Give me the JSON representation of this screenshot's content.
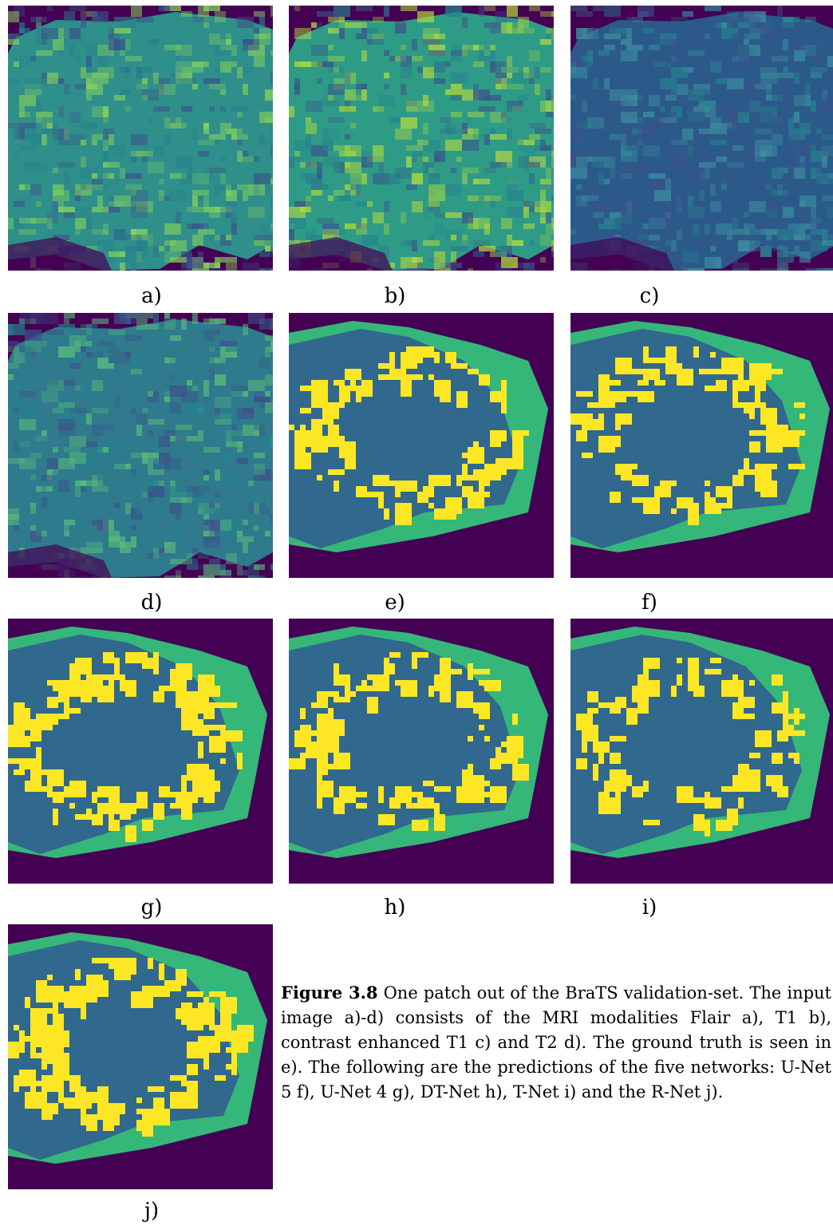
{
  "panels": [
    {
      "label": "a)",
      "kind": "mri",
      "modality": "Flair",
      "tint": "bright"
    },
    {
      "label": "b)",
      "kind": "mri",
      "modality": "T1",
      "tint": "light"
    },
    {
      "label": "c)",
      "kind": "mri",
      "modality": "contrast enhanced T1",
      "tint": "dark"
    },
    {
      "label": "d)",
      "kind": "mri",
      "modality": "T2",
      "tint": "medium"
    },
    {
      "label": "e)",
      "kind": "segmentation",
      "role": "ground truth"
    },
    {
      "label": "f)",
      "kind": "segmentation",
      "role": "U-Net 5"
    },
    {
      "label": "g)",
      "kind": "segmentation",
      "role": "U-Net 4"
    },
    {
      "label": "h)",
      "kind": "segmentation",
      "role": "DT-Net"
    },
    {
      "label": "i)",
      "kind": "segmentation",
      "role": "T-Net"
    },
    {
      "label": "j)",
      "kind": "segmentation",
      "role": "R-Net"
    }
  ],
  "colors": {
    "background": "#440154",
    "core": "#31688e",
    "edema": "#35b779",
    "enhancing": "#fde725"
  },
  "caption": {
    "label": "Figure 3.8",
    "text": " One patch out of the BraTS validation-set. The input image a)-d) consists of the MRI modalities Flair a), T1 b), contrast enhanced T1 c) and T2 d). The ground truth is seen in e). The following are the predictions of the five networks: U-Net 5 f), U-Net 4 g), DT-Net h), T-Net i) and the R-Net j)."
  }
}
